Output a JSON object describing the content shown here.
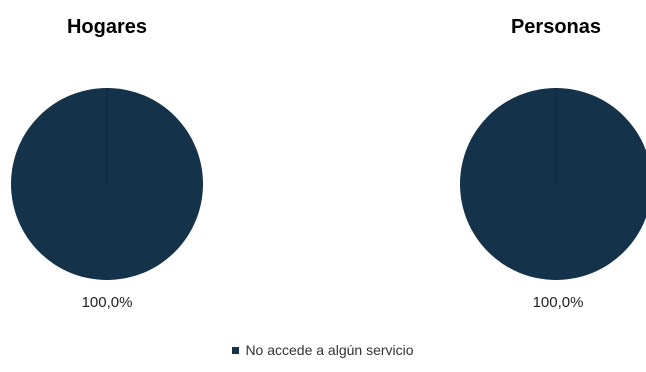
{
  "chart_data": [
    {
      "type": "pie",
      "title": "Hogares",
      "categories": [
        "No accede a algún servicio"
      ],
      "values": [
        100.0
      ],
      "labels": [
        "100,0%"
      ],
      "colors": [
        "#14334a"
      ]
    },
    {
      "type": "pie",
      "title": "Personas",
      "categories": [
        "No accede a algún servicio"
      ],
      "values": [
        100.0
      ],
      "labels": [
        "100,0%"
      ],
      "colors": [
        "#14334a"
      ]
    }
  ],
  "legend": {
    "label": "No accede a algún servicio",
    "color": "#14334a",
    "placement": "bottom"
  }
}
